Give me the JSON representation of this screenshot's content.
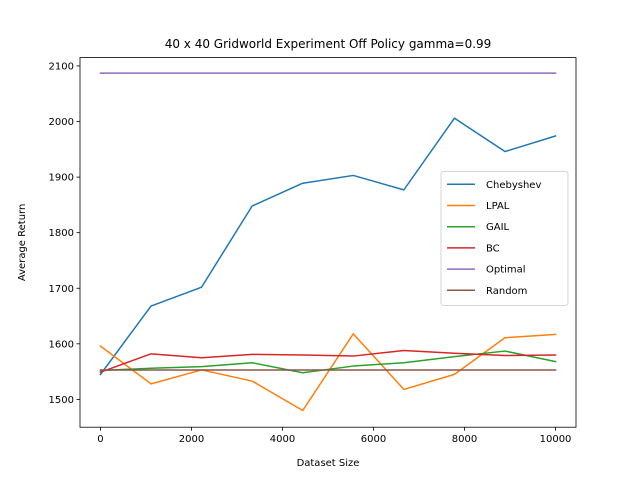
{
  "chart_data": {
    "type": "line",
    "title": "40 x 40 Gridworld Experiment Off Policy gamma=0.99",
    "xlabel": "Dataset Size",
    "ylabel": "Average Return",
    "xlim": [
      -450,
      10450
    ],
    "ylim": [
      1450,
      2115
    ],
    "xticks": [
      0,
      2000,
      4000,
      6000,
      8000,
      10000
    ],
    "yticks": [
      1500,
      1600,
      1700,
      1800,
      1900,
      2000,
      2100
    ],
    "x": [
      0,
      1111,
      2222,
      3333,
      4444,
      5556,
      6667,
      7778,
      8889,
      10000
    ],
    "legend_position": "center-right",
    "grid": false,
    "series": [
      {
        "name": "Chebyshev",
        "color": "#1f77b4",
        "values": [
          1545,
          1668,
          1702,
          1848,
          1889,
          1903,
          1877,
          2006,
          1946,
          1974
        ]
      },
      {
        "name": "LPAL",
        "color": "#ff7f0e",
        "values": [
          1596,
          1528,
          1553,
          1533,
          1480,
          1618,
          1518,
          1545,
          1611,
          1617
        ]
      },
      {
        "name": "GAIL",
        "color": "#2ca02c",
        "values": [
          1552,
          1556,
          1559,
          1566,
          1548,
          1560,
          1566,
          1577,
          1587,
          1568
        ]
      },
      {
        "name": "BC",
        "color": "#d62728",
        "values": [
          1549,
          1582,
          1575,
          1581,
          1580,
          1578,
          1588,
          1583,
          1579,
          1580
        ]
      },
      {
        "name": "Optimal",
        "color": "#9467bd",
        "values": [
          2087,
          2087,
          2087,
          2087,
          2087,
          2087,
          2087,
          2087,
          2087,
          2087
        ]
      },
      {
        "name": "Random",
        "color": "#8c564b",
        "values": [
          1553,
          1553,
          1553,
          1553,
          1553,
          1553,
          1553,
          1553,
          1553,
          1553
        ]
      }
    ]
  }
}
